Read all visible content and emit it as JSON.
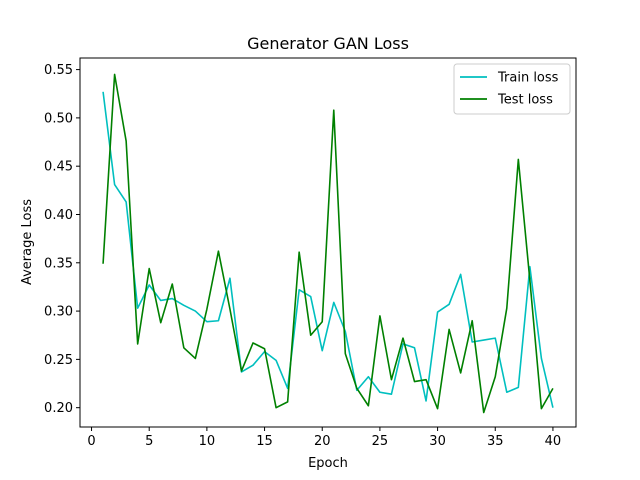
{
  "chart_data": {
    "type": "line",
    "title": "Generator GAN Loss",
    "xlabel": "Epoch",
    "ylabel": "Average Loss",
    "xlim": [
      -1,
      42
    ],
    "ylim": [
      0.18,
      0.562
    ],
    "xticks": [
      0,
      5,
      10,
      15,
      20,
      25,
      30,
      35,
      40
    ],
    "yticks": [
      0.2,
      0.25,
      0.3,
      0.35,
      0.4,
      0.45,
      0.5,
      0.55
    ],
    "grid": false,
    "legend_position": "top-right",
    "x": [
      1,
      2,
      3,
      4,
      5,
      6,
      7,
      8,
      9,
      10,
      11,
      12,
      13,
      14,
      15,
      16,
      17,
      18,
      19,
      20,
      21,
      22,
      23,
      24,
      25,
      26,
      27,
      28,
      29,
      30,
      31,
      32,
      33,
      34,
      35,
      36,
      37,
      38,
      39,
      40
    ],
    "series": [
      {
        "name": "Train loss",
        "color": "#00bfbf",
        "values": [
          0.527,
          0.431,
          0.413,
          0.303,
          0.327,
          0.311,
          0.313,
          0.306,
          0.3,
          0.289,
          0.29,
          0.334,
          0.237,
          0.244,
          0.258,
          0.249,
          0.22,
          0.322,
          0.315,
          0.259,
          0.309,
          0.279,
          0.218,
          0.232,
          0.216,
          0.214,
          0.266,
          0.262,
          0.207,
          0.299,
          0.307,
          0.338,
          0.268,
          0.27,
          0.272,
          0.216,
          0.221,
          0.346,
          0.251,
          0.2
        ]
      },
      {
        "name": "Test loss",
        "color": "#008000",
        "values": [
          0.349,
          0.545,
          0.476,
          0.266,
          0.344,
          0.288,
          0.328,
          0.262,
          0.251,
          0.302,
          0.362,
          0.302,
          0.238,
          0.267,
          0.261,
          0.2,
          0.206,
          0.361,
          0.275,
          0.289,
          0.508,
          0.256,
          0.22,
          0.202,
          0.295,
          0.229,
          0.272,
          0.227,
          0.229,
          0.199,
          0.281,
          0.236,
          0.29,
          0.195,
          0.232,
          0.303,
          0.457,
          0.332,
          0.199,
          0.22
        ]
      }
    ]
  }
}
